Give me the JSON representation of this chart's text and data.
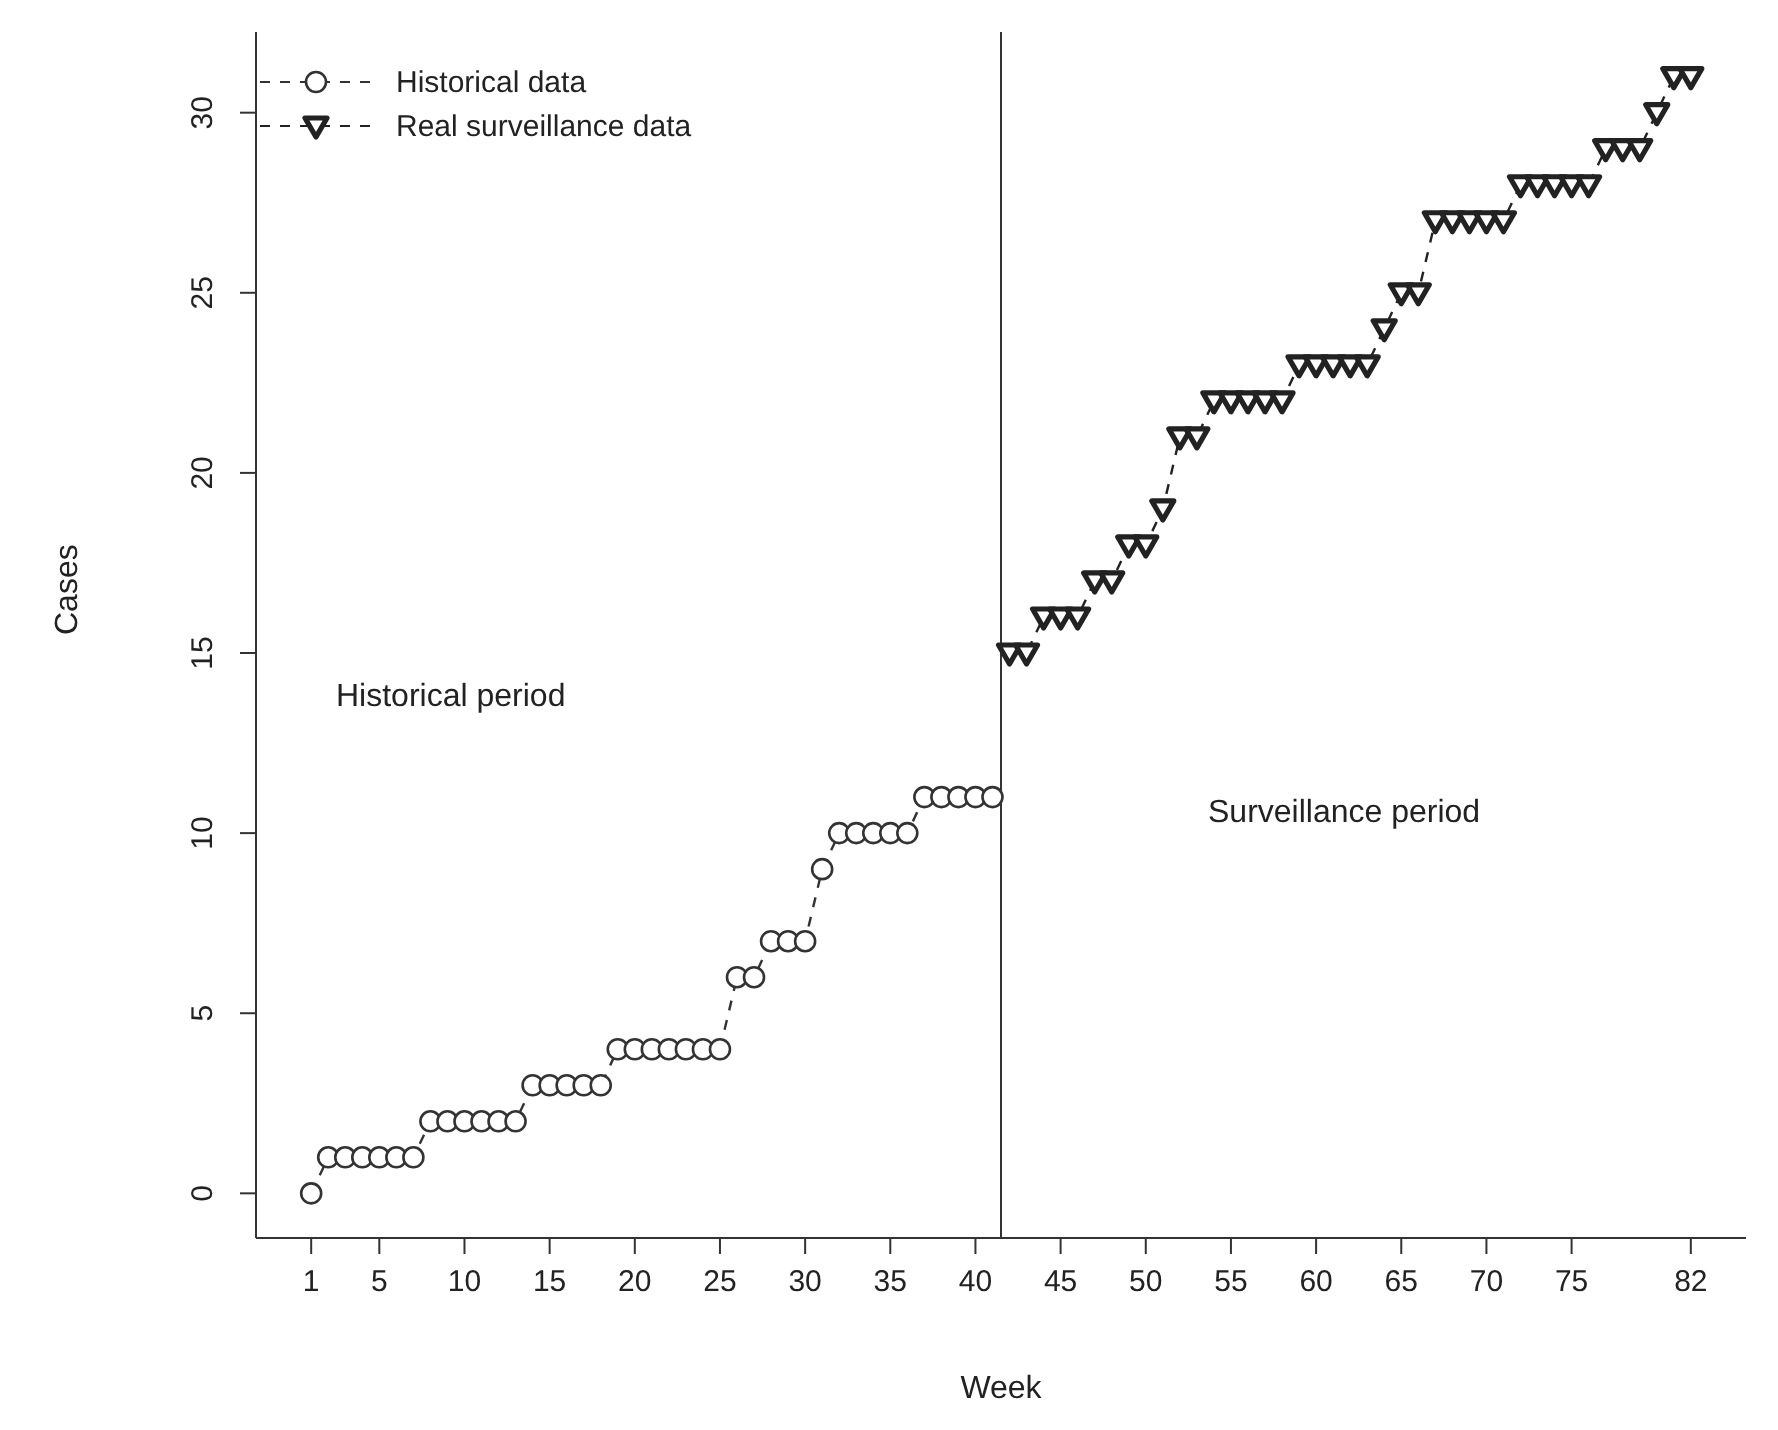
{
  "chart_data": {
    "type": "line",
    "xlabel": "Week",
    "ylabel": "Cases",
    "xlim": [
      -2.24,
      85.24
    ],
    "xticks": [
      1,
      5,
      10,
      15,
      20,
      25,
      30,
      35,
      40,
      45,
      50,
      55,
      60,
      65,
      70,
      75,
      82
    ],
    "ylim": [
      -1.24,
      32.24
    ],
    "yticks": [
      0,
      5,
      10,
      15,
      20,
      25,
      30
    ],
    "grid": false,
    "legend": "top left",
    "line_style": "dashed",
    "ref_lines": [
      {
        "axis": "x",
        "value": 41.5,
        "color": "#333333"
      }
    ],
    "annotations": [
      "Historical period",
      "Surveillance period"
    ],
    "series": [
      {
        "name": "Historical data",
        "color": "#333333",
        "marker": "circle",
        "x": [
          1,
          2,
          3,
          4,
          5,
          6,
          7,
          8,
          9,
          10,
          11,
          12,
          13,
          14,
          15,
          16,
          17,
          18,
          19,
          20,
          21,
          22,
          23,
          24,
          25,
          26,
          27,
          28,
          29,
          30,
          31,
          32,
          33,
          34,
          35,
          36,
          37,
          38,
          39,
          40,
          41
        ],
        "values": [
          0,
          1,
          1,
          1,
          1,
          1,
          1,
          2,
          2,
          2,
          2,
          2,
          2,
          3,
          3,
          3,
          3,
          3,
          4,
          4,
          4,
          4,
          4,
          4,
          4,
          6,
          6,
          7,
          7,
          7,
          9,
          10,
          10,
          10,
          10,
          10,
          11,
          11,
          11,
          11,
          11
        ]
      },
      {
        "name": "Real surveillance data",
        "color": "#222222",
        "marker": "triangle",
        "x": [
          42,
          43,
          44,
          45,
          46,
          47,
          48,
          49,
          50,
          51,
          52,
          53,
          54,
          55,
          56,
          57,
          58,
          59,
          60,
          61,
          62,
          63,
          64,
          65,
          66,
          67,
          68,
          69,
          70,
          71,
          72,
          73,
          74,
          75,
          76,
          77,
          78,
          79,
          80,
          81,
          82
        ],
        "values": [
          15,
          15,
          16,
          16,
          16,
          17,
          17,
          18,
          18,
          19,
          21,
          21,
          22,
          22,
          22,
          22,
          22,
          23,
          23,
          23,
          23,
          23,
          24,
          25,
          25,
          27,
          27,
          27,
          27,
          27,
          28,
          28,
          28,
          28,
          28,
          29,
          29,
          29,
          30,
          31,
          31
        ]
      }
    ]
  }
}
